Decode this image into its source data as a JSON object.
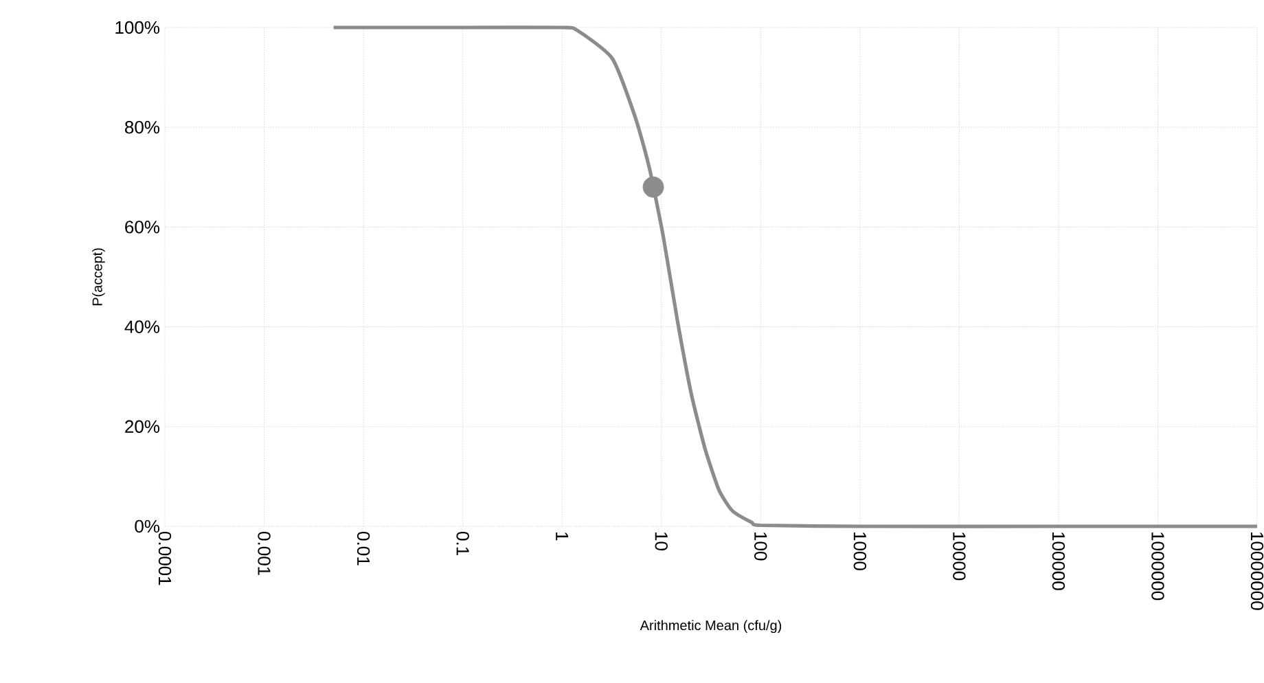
{
  "chart_data": {
    "type": "line",
    "xlabel": "Arithmetic Mean (cfu/g)",
    "ylabel": "P(accept)",
    "log": "x",
    "grid": true,
    "marker": "none",
    "line_style": "solid",
    "xlim": [
      0.0001,
      10000000
    ],
    "xticks": [
      {
        "value": 0.0001,
        "label": "0.0001"
      },
      {
        "value": 0.001,
        "label": "0.001"
      },
      {
        "value": 0.01,
        "label": "0.01"
      },
      {
        "value": 0.1,
        "label": "0.1"
      },
      {
        "value": 1,
        "label": "1"
      },
      {
        "value": 10,
        "label": "10"
      },
      {
        "value": 100,
        "label": "100"
      },
      {
        "value": 1000,
        "label": "1000"
      },
      {
        "value": 10000,
        "label": "10000"
      },
      {
        "value": 100000,
        "label": "100000"
      },
      {
        "value": 1000000,
        "label": "1000000"
      },
      {
        "value": 10000000,
        "label": "10000000"
      }
    ],
    "ylim": [
      0,
      1
    ],
    "yticks": [
      {
        "value": 0,
        "label": "0%"
      },
      {
        "value": 0.2,
        "label": "20%"
      },
      {
        "value": 0.4,
        "label": "40%"
      },
      {
        "value": 0.6,
        "label": "60%"
      },
      {
        "value": 0.8,
        "label": "80%"
      },
      {
        "value": 1,
        "label": "100%"
      }
    ],
    "series": [
      {
        "color": "#8c8c8c",
        "x": [
          0.005,
          0.1,
          1,
          1.4,
          3.2,
          5.5,
          7.6,
          10.5,
          14.5,
          20,
          27.5,
          38,
          52,
          81,
          100,
          1000,
          100000,
          10000000
        ],
        "values": [
          1,
          1,
          1,
          0.995,
          0.938,
          0.818,
          0.717,
          0.579,
          0.413,
          0.266,
          0.156,
          0.073,
          0.031,
          0.008,
          0.002,
          0,
          0,
          0
        ]
      },
      {
        "type": "scatter",
        "color": "#8c8c8c",
        "marker": "circle",
        "x": [
          8.3
        ],
        "values": [
          0.68
        ]
      }
    ]
  }
}
